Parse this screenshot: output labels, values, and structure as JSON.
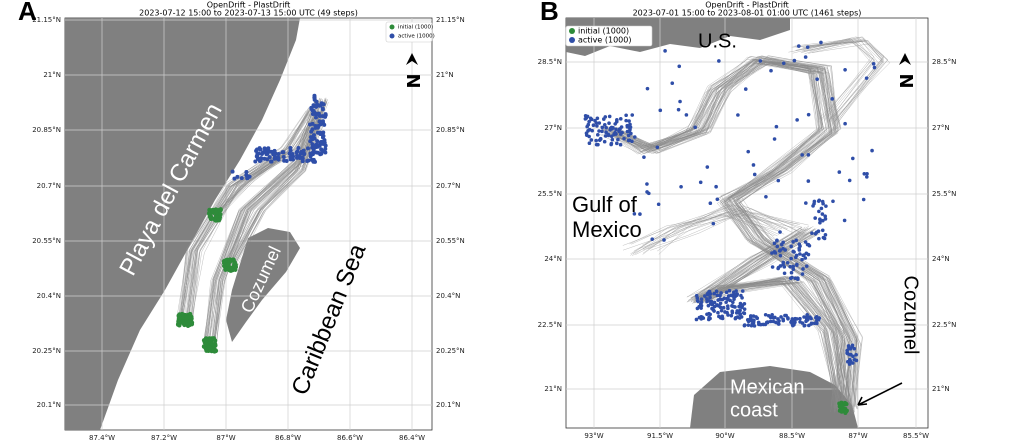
{
  "panels": [
    {
      "label": "A",
      "title": "OpenDrift - PlastDrift",
      "subtitle": "2023-07-12 15:00 to 2023-07-13 15:00 UTC (49 steps)",
      "lat_labels": [
        "21.15°N",
        "21°N",
        "20.85°N",
        "20.7°N",
        "20.55°N",
        "20.4°N",
        "20.25°N",
        "20.1°N"
      ],
      "lon_labels": [
        "87.4°W",
        "87.2°W",
        "87°W",
        "86.8°W",
        "86.6°W",
        "86.4°W"
      ],
      "legend": [
        "initial (1000)",
        "active (1000)"
      ],
      "north": "N",
      "annotations": {
        "city": "Playa del Carmen",
        "island": "Cozumel",
        "sea": "Caribbean Sea"
      }
    },
    {
      "label": "B",
      "title": "OpenDrift - PlastDrift",
      "subtitle": "2023-07-01 15:00 to 2023-08-01 01:00 UTC (1461 steps)",
      "lat_labels": [
        "28.5°N",
        "27°N",
        "25.5°N",
        "24°N",
        "22.5°N",
        "21°N"
      ],
      "lon_labels": [
        "93°W",
        "91.5°W",
        "90°W",
        "88.5°W",
        "87°W",
        "85.5°W"
      ],
      "legend": [
        "initial (1000)",
        "active (1000)"
      ],
      "north": "N",
      "annotations": {
        "us": "U.S.",
        "gulf": [
          "Gulf of",
          "Mexico"
        ],
        "coast": [
          "Mexican",
          "coast"
        ],
        "island": "Cozumel"
      }
    }
  ]
}
